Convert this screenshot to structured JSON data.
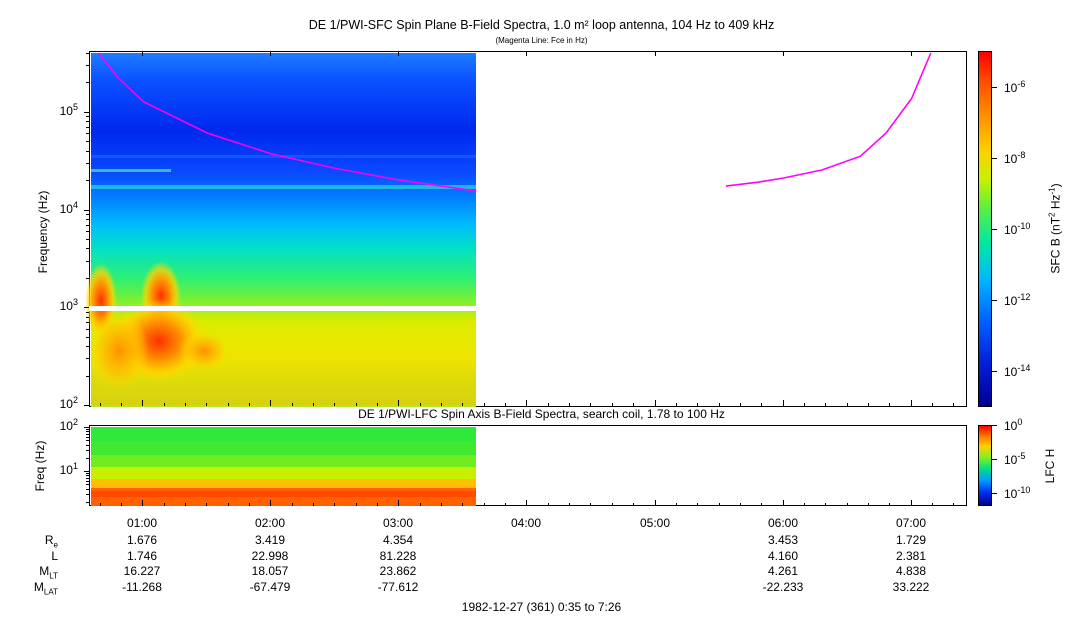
{
  "chart_data": [
    {
      "type": "heatmap",
      "title": "DE 1/PWI-SFC  Spin Plane B-Field Spectra, 1.0 m² loop antenna, 104 Hz to 409 kHz",
      "subtitle": "(Magenta Line: Fce in Hz)",
      "ylabel": "Frequency (Hz)",
      "yscale": "log",
      "ylim_hz": [
        100,
        409000
      ],
      "yticks": [
        {
          "base": "10",
          "exp": "2",
          "value": 100
        },
        {
          "base": "10",
          "exp": "3",
          "value": 1000
        },
        {
          "base": "10",
          "exp": "4",
          "value": 10000
        },
        {
          "base": "10",
          "exp": "5",
          "value": 100000
        }
      ],
      "data_coverage_hours_ut": [
        0.583,
        3.6
      ],
      "fce_line": {
        "name": "Fce",
        "color": "#ff00ff",
        "segments": [
          [
            [
              0.65,
              409000
            ],
            [
              0.8,
              230000
            ],
            [
              1.0,
              130000
            ],
            [
              1.5,
              62000
            ],
            [
              2.0,
              38000
            ],
            [
              2.5,
              27000
            ],
            [
              3.0,
              20500
            ],
            [
              3.6,
              15800
            ]
          ],
          [
            [
              5.55,
              17800
            ],
            [
              5.8,
              19500
            ],
            [
              6.0,
              21500
            ],
            [
              6.3,
              26000
            ],
            [
              6.6,
              36000
            ],
            [
              6.8,
              62000
            ],
            [
              7.0,
              140000
            ],
            [
              7.15,
              409000
            ]
          ]
        ]
      },
      "colorbar": {
        "label_main": "SFC B (nT",
        "label_exp1": "2",
        "label_mid": " Hz",
        "label_exp2": "-1",
        "label_end": ")",
        "scale": "log",
        "range": [
          1e-15,
          1e-05
        ],
        "ticks": [
          {
            "base": "10",
            "exp": "-6"
          },
          {
            "base": "10",
            "exp": "-8"
          },
          {
            "base": "10",
            "exp": "-10"
          },
          {
            "base": "10",
            "exp": "-12"
          },
          {
            "base": "10",
            "exp": "-14"
          }
        ]
      }
    },
    {
      "type": "heatmap",
      "title": "DE 1/PWI-LFC  Spin Axis B-Field Spectra, search coil, 1.78 to 100 Hz",
      "ylabel": "Freq (Hz)",
      "yscale": "log",
      "ylim_hz": [
        1.78,
        100
      ],
      "yticks": [
        {
          "base": "10",
          "exp": "2",
          "value": 100
        },
        {
          "base": "10",
          "exp": "1",
          "value": 10
        }
      ],
      "data_coverage_hours_ut": [
        0.583,
        3.6
      ],
      "colorbar": {
        "label": "LFC H",
        "scale": "log",
        "range": [
          1e-12,
          1
        ],
        "ticks": [
          {
            "base": "10",
            "exp": "0"
          },
          {
            "base": "10",
            "exp": "-5"
          },
          {
            "base": "10",
            "exp": "-10"
          }
        ]
      }
    }
  ],
  "time_axis": {
    "xlim_hours_ut": [
      0.583,
      7.433
    ],
    "ticks": [
      "01:00",
      "02:00",
      "03:00",
      "04:00",
      "05:00",
      "06:00",
      "07:00"
    ],
    "tick_hours": [
      1,
      2,
      3,
      4,
      5,
      6,
      7
    ]
  },
  "ephemeris": {
    "rows": [
      {
        "label": "R",
        "sub": "e",
        "values": [
          "1.676",
          "3.419",
          "4.354",
          "",
          "",
          "3.453",
          "1.729"
        ]
      },
      {
        "label": "L",
        "sub": "",
        "values": [
          "1.746",
          "22.998",
          "81.228",
          "",
          "",
          "4.160",
          "2.381"
        ]
      },
      {
        "label": "M",
        "sub": "LT",
        "values": [
          "16.227",
          "18.057",
          "23.862",
          "",
          "",
          "4.261",
          "4.838"
        ]
      },
      {
        "label": "M",
        "sub": "LAT",
        "values": [
          "-11.268",
          "-67.479",
          "-77.612",
          "",
          "",
          "-22.233",
          "33.222"
        ]
      }
    ]
  },
  "footer": "1982-12-27 (361) 0:35 to 7:26"
}
